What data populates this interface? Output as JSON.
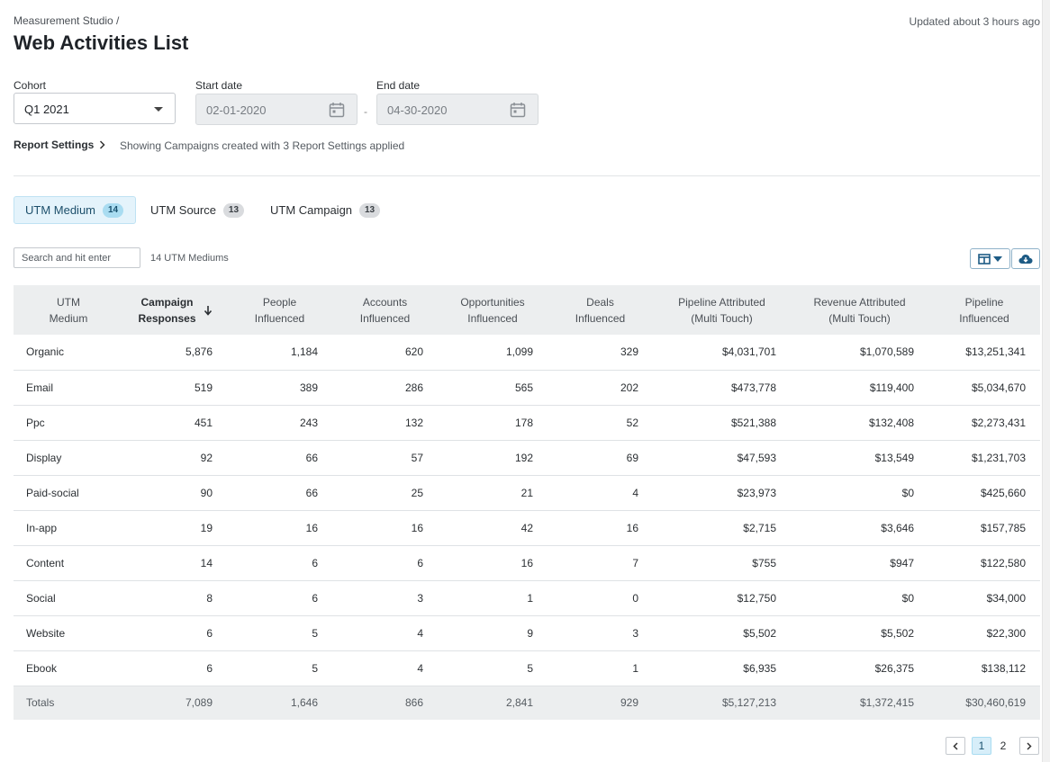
{
  "header": {
    "breadcrumb": "Measurement Studio /",
    "title": "Web Activities List",
    "updated": "Updated about 3 hours ago"
  },
  "filters": {
    "cohort_label": "Cohort",
    "cohort_value": "Q1 2021",
    "start_label": "Start date",
    "start_value": "02-01-2020",
    "separator": "-",
    "end_label": "End date",
    "end_value": "04-30-2020"
  },
  "report_settings": {
    "label": "Report Settings",
    "note": "Showing Campaigns created with 3 Report Settings applied"
  },
  "tabs": [
    {
      "label": "UTM Medium",
      "count": "14",
      "active": true
    },
    {
      "label": "UTM Source",
      "count": "13",
      "active": false
    },
    {
      "label": "UTM Campaign",
      "count": "13",
      "active": false
    }
  ],
  "toolbar": {
    "search_placeholder": "Search and hit enter",
    "count_text": "14 UTM Mediums",
    "icons": [
      "columns-icon",
      "chevron-down-icon",
      "cloud-download-icon"
    ]
  },
  "table": {
    "columns": [
      [
        "UTM",
        "Medium"
      ],
      [
        "Campaign",
        "Responses"
      ],
      [
        "People",
        "Influenced"
      ],
      [
        "Accounts",
        "Influenced"
      ],
      [
        "Opportunities",
        "Influenced"
      ],
      [
        "Deals",
        "Influenced"
      ],
      [
        "Pipeline Attributed",
        "(Multi Touch)"
      ],
      [
        "Revenue Attributed",
        "(Multi Touch)"
      ],
      [
        "Pipeline",
        "Influenced"
      ]
    ],
    "sorted_column": "Campaign Responses",
    "rows": [
      [
        "Organic",
        "5,876",
        "1,184",
        "620",
        "1,099",
        "329",
        "$4,031,701",
        "$1,070,589",
        "$13,251,341"
      ],
      [
        "Email",
        "519",
        "389",
        "286",
        "565",
        "202",
        "$473,778",
        "$119,400",
        "$5,034,670"
      ],
      [
        "Ppc",
        "451",
        "243",
        "132",
        "178",
        "52",
        "$521,388",
        "$132,408",
        "$2,273,431"
      ],
      [
        "Display",
        "92",
        "66",
        "57",
        "192",
        "69",
        "$47,593",
        "$13,549",
        "$1,231,703"
      ],
      [
        "Paid-social",
        "90",
        "66",
        "25",
        "21",
        "4",
        "$23,973",
        "$0",
        "$425,660"
      ],
      [
        "In-app",
        "19",
        "16",
        "16",
        "42",
        "16",
        "$2,715",
        "$3,646",
        "$157,785"
      ],
      [
        "Content",
        "14",
        "6",
        "6",
        "16",
        "7",
        "$755",
        "$947",
        "$122,580"
      ],
      [
        "Social",
        "8",
        "6",
        "3",
        "1",
        "0",
        "$12,750",
        "$0",
        "$34,000"
      ],
      [
        "Website",
        "6",
        "5",
        "4",
        "9",
        "3",
        "$5,502",
        "$5,502",
        "$22,300"
      ],
      [
        "Ebook",
        "6",
        "5",
        "4",
        "5",
        "1",
        "$6,935",
        "$26,375",
        "$138,112"
      ]
    ],
    "totals": [
      "Totals",
      "7,089",
      "1,646",
      "866",
      "2,841",
      "929",
      "$5,127,213",
      "$1,372,415",
      "$30,460,619"
    ]
  },
  "pagination": {
    "pages": [
      "1",
      "2"
    ],
    "current": "1"
  },
  "colors": {
    "link": "#1d5b85",
    "active_tab_bg": "#e4f3fb",
    "header_bg": "#eceeef",
    "accent": "#2a6f9b"
  }
}
